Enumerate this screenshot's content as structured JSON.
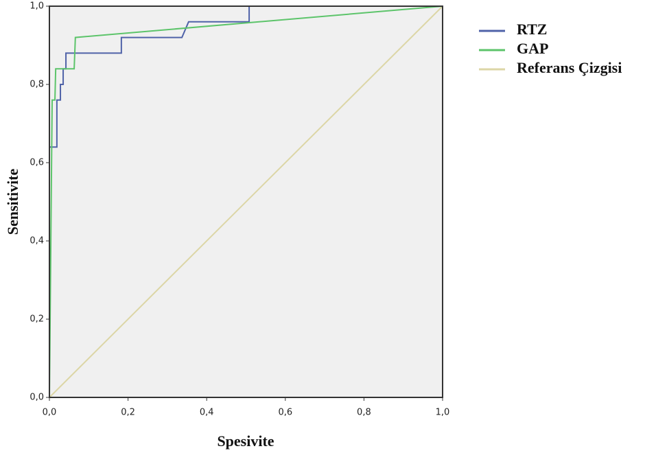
{
  "chart_data": {
    "type": "line",
    "xlabel": "Spesivite",
    "ylabel": "Sensitivite",
    "xlim": [
      0,
      1
    ],
    "ylim": [
      0,
      1
    ],
    "xticks": [
      {
        "value": 0,
        "label": "0,0"
      },
      {
        "value": 0.2,
        "label": "0,2"
      },
      {
        "value": 0.4,
        "label": "0,4"
      },
      {
        "value": 0.6,
        "label": "0,6"
      },
      {
        "value": 0.8,
        "label": "0,8"
      },
      {
        "value": 1,
        "label": "1,0"
      }
    ],
    "yticks": [
      {
        "value": 0,
        "label": "0,0"
      },
      {
        "value": 0.2,
        "label": "0,2"
      },
      {
        "value": 0.4,
        "label": "0,4"
      },
      {
        "value": 0.6,
        "label": "0,6"
      },
      {
        "value": 0.8,
        "label": "0,8"
      },
      {
        "value": 1,
        "label": "1,0"
      }
    ],
    "legend": "right",
    "series": [
      {
        "name": "RTZ",
        "color": "#4f62a8",
        "x": [
          0,
          0,
          0.019,
          0.019,
          0.028,
          0.028,
          0.035,
          0.035,
          0.042,
          0.042,
          0.183,
          0.183,
          0.337,
          0.354,
          0.508,
          0.508,
          1
        ],
        "values": [
          0,
          0.64,
          0.64,
          0.76,
          0.76,
          0.8,
          0.8,
          0.84,
          0.84,
          0.88,
          0.88,
          0.92,
          0.92,
          0.96,
          0.96,
          1,
          1
        ]
      },
      {
        "name": "GAP",
        "color": "#5cc46a",
        "x": [
          0,
          0.007,
          0.014,
          0.016,
          0.063,
          0.066,
          1
        ],
        "values": [
          0,
          0.76,
          0.76,
          0.84,
          0.84,
          0.92,
          1
        ]
      },
      {
        "name": "Referans Çizgisi",
        "color": "#dcd6a6",
        "x": [
          0,
          1
        ],
        "values": [
          0,
          1
        ]
      }
    ]
  }
}
